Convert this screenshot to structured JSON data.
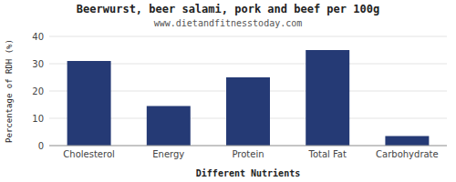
{
  "chart_data": {
    "type": "bar",
    "title": "Beerwurst, beer salami, pork and beef per 100g",
    "subtitle": "www.dietandfitnesstoday.com",
    "xlabel": "Different Nutrients",
    "ylabel": "Percentage of RDH (%)",
    "categories": [
      "Cholesterol",
      "Energy",
      "Protein",
      "Total Fat",
      "Carbohydrate"
    ],
    "values": [
      31,
      14.5,
      25,
      35,
      3.5
    ],
    "color": "#253a75",
    "ylim": [
      0,
      40
    ],
    "yticks": [
      0,
      10,
      20,
      30,
      40
    ],
    "grid": true
  }
}
